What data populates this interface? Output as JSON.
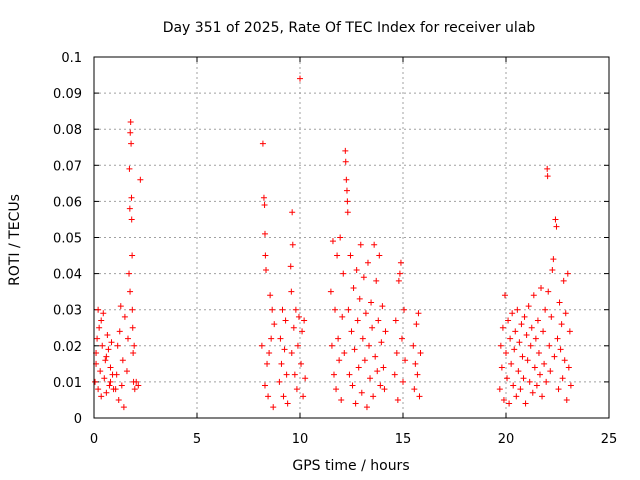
{
  "chart_data": {
    "type": "scatter",
    "title": "Day 351 of 2025, Rate Of TEC Index for receiver ulab",
    "xlabel": "GPS time / hours",
    "ylabel": "ROTI / TECUs",
    "xlim": [
      0,
      25
    ],
    "ylim": [
      0,
      0.1
    ],
    "xticks": [
      "0",
      "5",
      "10",
      "15",
      "20",
      "25"
    ],
    "yticks": [
      "0",
      "0.01",
      "0.02",
      "0.03",
      "0.04",
      "0.05",
      "0.06",
      "0.07",
      "0.08",
      "0.09",
      "0.1"
    ],
    "grid": true,
    "marker": "plus",
    "color": "#ff0000",
    "series": [
      {
        "points": [
          [
            0.05,
            0.01
          ],
          [
            0.1,
            0.018
          ],
          [
            0.15,
            0.022
          ],
          [
            0.2,
            0.008
          ],
          [
            0.25,
            0.025
          ],
          [
            0.3,
            0.013
          ],
          [
            0.35,
            0.006
          ],
          [
            0.4,
            0.02
          ],
          [
            0.45,
            0.029
          ],
          [
            0.5,
            0.011
          ],
          [
            0.55,
            0.016
          ],
          [
            0.6,
            0.007
          ],
          [
            0.65,
            0.023
          ],
          [
            0.7,
            0.019
          ],
          [
            0.75,
            0.009
          ],
          [
            0.8,
            0.014
          ],
          [
            0.85,
            0.021
          ],
          [
            0.9,
            0.012
          ],
          [
            0.95,
            0.008
          ],
          [
            0.2,
            0.03
          ],
          [
            0.35,
            0.027
          ],
          [
            0.1,
            0.015
          ],
          [
            0.6,
            0.017
          ],
          [
            0.8,
            0.01
          ],
          [
            1.05,
            0.008
          ],
          [
            1.1,
            0.012
          ],
          [
            1.15,
            0.02
          ],
          [
            1.2,
            0.005
          ],
          [
            1.25,
            0.024
          ],
          [
            1.3,
            0.031
          ],
          [
            1.35,
            0.009
          ],
          [
            1.4,
            0.016
          ],
          [
            1.45,
            0.003
          ],
          [
            1.5,
            0.028
          ],
          [
            1.6,
            0.013
          ],
          [
            1.65,
            0.022
          ],
          [
            1.7,
            0.04
          ],
          [
            1.72,
            0.069
          ],
          [
            1.74,
            0.058
          ],
          [
            1.75,
            0.035
          ],
          [
            1.76,
            0.079
          ],
          [
            1.78,
            0.082
          ],
          [
            1.8,
            0.076
          ],
          [
            1.82,
            0.061
          ],
          [
            1.83,
            0.055
          ],
          [
            1.85,
            0.045
          ],
          [
            1.86,
            0.03
          ],
          [
            1.88,
            0.025
          ],
          [
            1.9,
            0.018
          ],
          [
            1.92,
            0.01
          ],
          [
            1.95,
            0.02
          ],
          [
            1.98,
            0.008
          ],
          [
            2.05,
            0.01
          ],
          [
            2.15,
            0.009
          ],
          [
            2.25,
            0.066
          ],
          [
            8.2,
            0.076
          ],
          [
            8.25,
            0.061
          ],
          [
            8.28,
            0.059
          ],
          [
            8.3,
            0.051
          ],
          [
            8.32,
            0.045
          ],
          [
            8.35,
            0.041
          ],
          [
            8.15,
            0.02
          ],
          [
            8.3,
            0.009
          ],
          [
            8.4,
            0.015
          ],
          [
            8.45,
            0.006
          ],
          [
            8.5,
            0.018
          ],
          [
            8.55,
            0.034
          ],
          [
            8.6,
            0.022
          ],
          [
            8.65,
            0.03
          ],
          [
            8.7,
            0.003
          ],
          [
            8.75,
            0.026
          ],
          [
            9.0,
            0.01
          ],
          [
            9.05,
            0.022
          ],
          [
            9.1,
            0.015
          ],
          [
            9.15,
            0.03
          ],
          [
            9.2,
            0.006
          ],
          [
            9.25,
            0.019
          ],
          [
            9.3,
            0.027
          ],
          [
            9.35,
            0.012
          ],
          [
            9.4,
            0.004
          ],
          [
            9.55,
            0.042
          ],
          [
            9.58,
            0.035
          ],
          [
            9.6,
            0.018
          ],
          [
            9.62,
            0.057
          ],
          [
            9.65,
            0.048
          ],
          [
            9.7,
            0.025
          ],
          [
            9.75,
            0.012
          ],
          [
            9.8,
            0.03
          ],
          [
            9.85,
            0.008
          ],
          [
            9.9,
            0.02
          ],
          [
            9.95,
            0.028
          ],
          [
            10.0,
            0.094
          ],
          [
            10.05,
            0.015
          ],
          [
            10.1,
            0.024
          ],
          [
            10.15,
            0.006
          ],
          [
            10.2,
            0.027
          ],
          [
            10.25,
            0.011
          ],
          [
            11.5,
            0.035
          ],
          [
            11.55,
            0.02
          ],
          [
            11.6,
            0.049
          ],
          [
            11.65,
            0.012
          ],
          [
            11.7,
            0.03
          ],
          [
            11.75,
            0.008
          ],
          [
            11.8,
            0.045
          ],
          [
            11.85,
            0.022
          ],
          [
            11.9,
            0.016
          ],
          [
            11.95,
            0.05
          ],
          [
            12.0,
            0.005
          ],
          [
            12.05,
            0.028
          ],
          [
            12.1,
            0.04
          ],
          [
            12.15,
            0.018
          ],
          [
            12.2,
            0.074
          ],
          [
            12.22,
            0.071
          ],
          [
            12.25,
            0.066
          ],
          [
            12.28,
            0.063
          ],
          [
            12.3,
            0.06
          ],
          [
            12.32,
            0.057
          ],
          [
            12.35,
            0.03
          ],
          [
            12.4,
            0.012
          ],
          [
            12.45,
            0.045
          ],
          [
            12.5,
            0.024
          ],
          [
            12.55,
            0.009
          ],
          [
            12.6,
            0.036
          ],
          [
            12.65,
            0.019
          ],
          [
            12.7,
            0.004
          ],
          [
            12.75,
            0.041
          ],
          [
            12.8,
            0.027
          ],
          [
            12.85,
            0.014
          ],
          [
            12.9,
            0.033
          ],
          [
            12.95,
            0.048
          ],
          [
            13.0,
            0.007
          ],
          [
            13.05,
            0.022
          ],
          [
            13.1,
            0.039
          ],
          [
            13.15,
            0.016
          ],
          [
            13.2,
            0.029
          ],
          [
            13.25,
            0.003
          ],
          [
            13.3,
            0.043
          ],
          [
            13.35,
            0.02
          ],
          [
            13.4,
            0.011
          ],
          [
            13.45,
            0.032
          ],
          [
            13.5,
            0.025
          ],
          [
            13.55,
            0.006
          ],
          [
            13.6,
            0.048
          ],
          [
            13.65,
            0.017
          ],
          [
            13.7,
            0.038
          ],
          [
            13.75,
            0.013
          ],
          [
            13.8,
            0.027
          ],
          [
            13.85,
            0.045
          ],
          [
            13.9,
            0.009
          ],
          [
            13.95,
            0.021
          ],
          [
            14.0,
            0.031
          ],
          [
            14.05,
            0.014
          ],
          [
            14.1,
            0.008
          ],
          [
            14.15,
            0.024
          ],
          [
            14.6,
            0.012
          ],
          [
            14.65,
            0.027
          ],
          [
            14.7,
            0.018
          ],
          [
            14.75,
            0.005
          ],
          [
            14.8,
            0.038
          ],
          [
            14.85,
            0.04
          ],
          [
            14.9,
            0.043
          ],
          [
            14.95,
            0.022
          ],
          [
            15.0,
            0.01
          ],
          [
            15.05,
            0.03
          ],
          [
            15.1,
            0.016
          ],
          [
            15.5,
            0.02
          ],
          [
            15.55,
            0.008
          ],
          [
            15.6,
            0.015
          ],
          [
            15.65,
            0.026
          ],
          [
            15.7,
            0.012
          ],
          [
            15.75,
            0.029
          ],
          [
            15.8,
            0.006
          ],
          [
            15.85,
            0.018
          ],
          [
            19.7,
            0.008
          ],
          [
            19.75,
            0.02
          ],
          [
            19.8,
            0.014
          ],
          [
            19.85,
            0.025
          ],
          [
            19.9,
            0.005
          ],
          [
            19.95,
            0.034
          ],
          [
            20.0,
            0.018
          ],
          [
            20.05,
            0.011
          ],
          [
            20.1,
            0.027
          ],
          [
            20.15,
            0.004
          ],
          [
            20.2,
            0.022
          ],
          [
            20.25,
            0.015
          ],
          [
            20.3,
            0.029
          ],
          [
            20.35,
            0.009
          ],
          [
            20.4,
            0.019
          ],
          [
            20.45,
            0.024
          ],
          [
            20.5,
            0.006
          ],
          [
            20.55,
            0.03
          ],
          [
            20.6,
            0.013
          ],
          [
            20.65,
            0.021
          ],
          [
            20.7,
            0.008
          ],
          [
            20.75,
            0.026
          ],
          [
            20.8,
            0.017
          ],
          [
            20.85,
            0.011
          ],
          [
            20.9,
            0.028
          ],
          [
            20.95,
            0.004
          ],
          [
            21.0,
            0.023
          ],
          [
            21.05,
            0.016
          ],
          [
            21.1,
            0.031
          ],
          [
            21.15,
            0.01
          ],
          [
            21.2,
            0.02
          ],
          [
            21.25,
            0.025
          ],
          [
            21.3,
            0.007
          ],
          [
            21.35,
            0.034
          ],
          [
            21.4,
            0.014
          ],
          [
            21.45,
            0.022
          ],
          [
            21.5,
            0.009
          ],
          [
            21.55,
            0.027
          ],
          [
            21.6,
            0.018
          ],
          [
            21.65,
            0.012
          ],
          [
            21.7,
            0.036
          ],
          [
            21.75,
            0.006
          ],
          [
            21.8,
            0.024
          ],
          [
            21.85,
            0.015
          ],
          [
            21.9,
            0.03
          ],
          [
            21.95,
            0.01
          ],
          [
            22.0,
            0.069
          ],
          [
            22.02,
            0.067
          ],
          [
            22.05,
            0.035
          ],
          [
            22.1,
            0.02
          ],
          [
            22.15,
            0.013
          ],
          [
            22.2,
            0.028
          ],
          [
            22.25,
            0.041
          ],
          [
            22.3,
            0.044
          ],
          [
            22.35,
            0.017
          ],
          [
            22.4,
            0.055
          ],
          [
            22.45,
            0.053
          ],
          [
            22.5,
            0.022
          ],
          [
            22.55,
            0.008
          ],
          [
            22.6,
            0.032
          ],
          [
            22.65,
            0.019
          ],
          [
            22.7,
            0.026
          ],
          [
            22.75,
            0.011
          ],
          [
            22.8,
            0.038
          ],
          [
            22.85,
            0.016
          ],
          [
            22.9,
            0.029
          ],
          [
            22.95,
            0.005
          ],
          [
            23.0,
            0.04
          ],
          [
            23.05,
            0.014
          ],
          [
            23.1,
            0.024
          ],
          [
            23.15,
            0.009
          ]
        ]
      }
    ]
  }
}
